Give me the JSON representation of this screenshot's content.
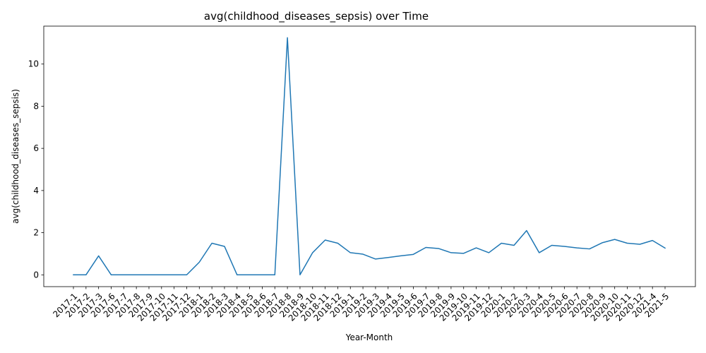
{
  "chart_data": {
    "type": "line",
    "title": "avg(childhood_diseases_sepsis) over Time",
    "xlabel": "Year-Month",
    "ylabel": "avg(childhood_diseases_sepsis)",
    "ylim": [
      -0.56,
      11.8
    ],
    "yticks": [
      0,
      2,
      4,
      6,
      8,
      10
    ],
    "grid": false,
    "categories": [
      "2017-1",
      "2017-2",
      "2017-3",
      "2017-6",
      "2017-7",
      "2017-8",
      "2017-9",
      "2017-10",
      "2017-11",
      "2017-12",
      "2018-1",
      "2018-2",
      "2018-3",
      "2018-4",
      "2018-5",
      "2018-6",
      "2018-7",
      "2018-8",
      "2018-9",
      "2018-10",
      "2018-11",
      "2018-12",
      "2019-1",
      "2019-2",
      "2019-3",
      "2019-4",
      "2019-5",
      "2019-6",
      "2019-7",
      "2019-8",
      "2019-9",
      "2019-10",
      "2019-11",
      "2019-12",
      "2020-1",
      "2020-2",
      "2020-3",
      "2020-4",
      "2020-5",
      "2020-6",
      "2020-7",
      "2020-8",
      "2020-9",
      "2020-10",
      "2020-11",
      "2020-12",
      "2021-4",
      "2021-5"
    ],
    "series": [
      {
        "color": "#1f77b4",
        "values": [
          0,
          0,
          0.9,
          0,
          0,
          0,
          0,
          0,
          0,
          0,
          0.6,
          1.5,
          1.35,
          0,
          0,
          0,
          0,
          11.25,
          0,
          1.05,
          1.65,
          1.5,
          1.05,
          0.98,
          0.75,
          0.82,
          0.9,
          0.97,
          1.3,
          1.25,
          1.05,
          1.02,
          1.28,
          1.05,
          1.5,
          1.4,
          2.1,
          1.05,
          1.4,
          1.35,
          1.28,
          1.23,
          1.52,
          1.68,
          1.5,
          1.45,
          1.63,
          1.27
        ]
      }
    ]
  }
}
